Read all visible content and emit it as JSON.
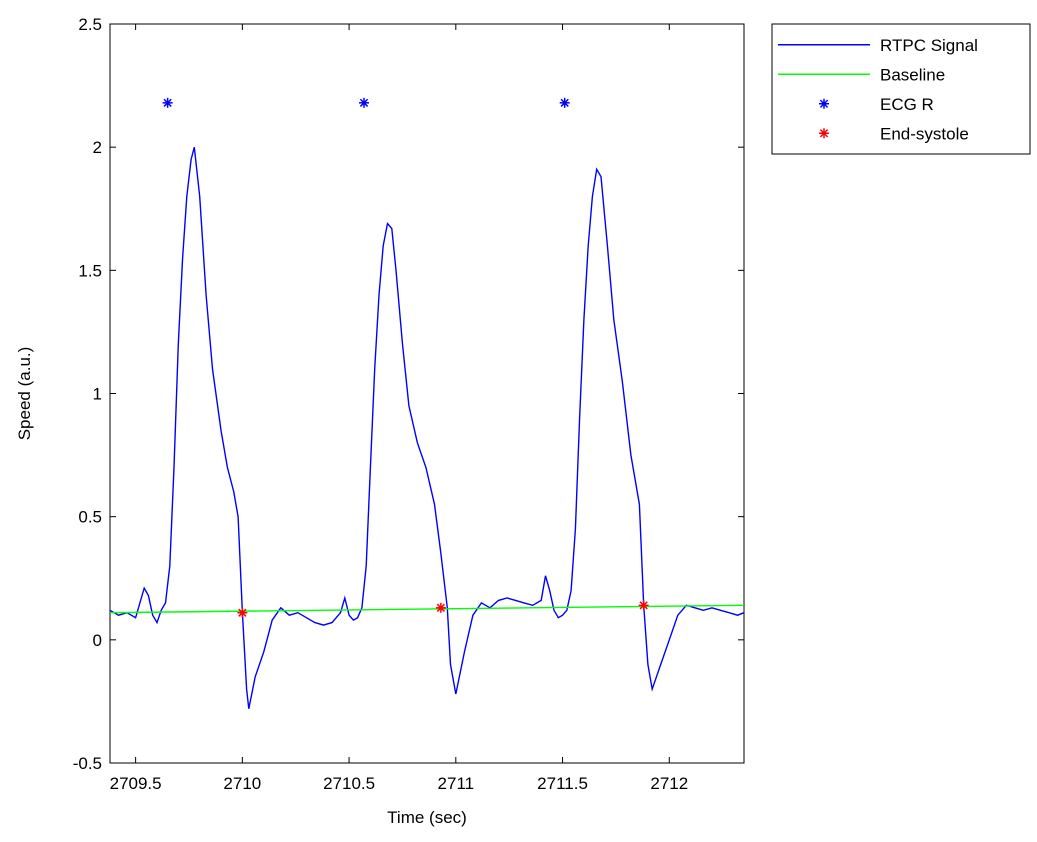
{
  "chart_data": {
    "type": "line",
    "xlabel": "Time (sec)",
    "ylabel": "Speed (a.u.)",
    "xlim": [
      2709.38,
      2712.35
    ],
    "ylim": [
      -0.5,
      2.5
    ],
    "xticks": [
      2709.5,
      2710,
      2710.5,
      2711,
      2711.5,
      2712
    ],
    "xtick_labels": [
      "2709.5",
      "2710",
      "2710.5",
      "2711",
      "2711.5",
      "2712"
    ],
    "yticks": [
      -0.5,
      0,
      0.5,
      1,
      1.5,
      2,
      2.5
    ],
    "ytick_labels": [
      "-0.5",
      "0",
      "0.5",
      "1",
      "1.5",
      "2",
      "2.5"
    ],
    "grid": false,
    "legend_position": "outside-top-right",
    "series": [
      {
        "name": "RTPC Signal",
        "kind": "line",
        "color": "#0000ff",
        "x": [
          2709.38,
          2709.42,
          2709.46,
          2709.5,
          2709.54,
          2709.56,
          2709.58,
          2709.6,
          2709.62,
          2709.64,
          2709.66,
          2709.68,
          2709.7,
          2709.72,
          2709.74,
          2709.76,
          2709.775,
          2709.8,
          2709.83,
          2709.86,
          2709.9,
          2709.93,
          2709.96,
          2709.98,
          2710.0,
          2710.02,
          2710.03,
          2710.06,
          2710.1,
          2710.14,
          2710.18,
          2710.22,
          2710.26,
          2710.3,
          2710.34,
          2710.38,
          2710.42,
          2710.46,
          2710.48,
          2710.5,
          2710.52,
          2710.54,
          2710.56,
          2710.58,
          2710.6,
          2710.62,
          2710.64,
          2710.66,
          2710.68,
          2710.7,
          2710.72,
          2710.75,
          2710.78,
          2710.82,
          2710.86,
          2710.9,
          2710.93,
          2710.96,
          2710.975,
          2711.0,
          2711.04,
          2711.08,
          2711.12,
          2711.16,
          2711.2,
          2711.24,
          2711.28,
          2711.32,
          2711.36,
          2711.4,
          2711.42,
          2711.44,
          2711.46,
          2711.48,
          2711.5,
          2711.52,
          2711.54,
          2711.56,
          2711.58,
          2711.6,
          2711.62,
          2711.64,
          2711.66,
          2711.68,
          2711.71,
          2711.74,
          2711.78,
          2711.82,
          2711.86,
          2711.88,
          2711.9,
          2711.92,
          2711.96,
          2712.0,
          2712.04,
          2712.08,
          2712.12,
          2712.16,
          2712.2,
          2712.24,
          2712.28,
          2712.32,
          2712.35
        ],
        "y": [
          0.12,
          0.1,
          0.11,
          0.09,
          0.21,
          0.18,
          0.1,
          0.07,
          0.12,
          0.15,
          0.3,
          0.7,
          1.2,
          1.55,
          1.8,
          1.95,
          2.0,
          1.8,
          1.4,
          1.1,
          0.85,
          0.7,
          0.6,
          0.5,
          0.11,
          -0.2,
          -0.28,
          -0.15,
          -0.05,
          0.08,
          0.13,
          0.1,
          0.11,
          0.09,
          0.07,
          0.06,
          0.07,
          0.11,
          0.17,
          0.1,
          0.08,
          0.09,
          0.13,
          0.3,
          0.7,
          1.1,
          1.4,
          1.6,
          1.69,
          1.67,
          1.5,
          1.2,
          0.95,
          0.8,
          0.7,
          0.55,
          0.35,
          0.13,
          -0.1,
          -0.22,
          -0.05,
          0.1,
          0.15,
          0.13,
          0.16,
          0.17,
          0.16,
          0.15,
          0.14,
          0.16,
          0.26,
          0.2,
          0.12,
          0.09,
          0.1,
          0.12,
          0.2,
          0.45,
          0.9,
          1.3,
          1.6,
          1.8,
          1.91,
          1.88,
          1.6,
          1.3,
          1.05,
          0.75,
          0.55,
          0.14,
          -0.1,
          -0.2,
          -0.1,
          0.0,
          0.1,
          0.14,
          0.13,
          0.12,
          0.13,
          0.12,
          0.11,
          0.1,
          0.11
        ]
      },
      {
        "name": "Baseline",
        "kind": "line",
        "color": "#00ff00",
        "x": [
          2709.38,
          2712.35
        ],
        "y": [
          0.11,
          0.14
        ]
      },
      {
        "name": "ECG R",
        "kind": "marker",
        "marker": "*",
        "color": "#0000ff",
        "x": [
          2709.65,
          2710.57,
          2711.51
        ],
        "y": [
          2.18,
          2.18,
          2.18
        ]
      },
      {
        "name": "End-systole",
        "kind": "marker",
        "marker": "*",
        "color": "#ff0000",
        "x": [
          2710.0,
          2710.93,
          2711.88
        ],
        "y": [
          0.11,
          0.13,
          0.14
        ]
      }
    ]
  }
}
